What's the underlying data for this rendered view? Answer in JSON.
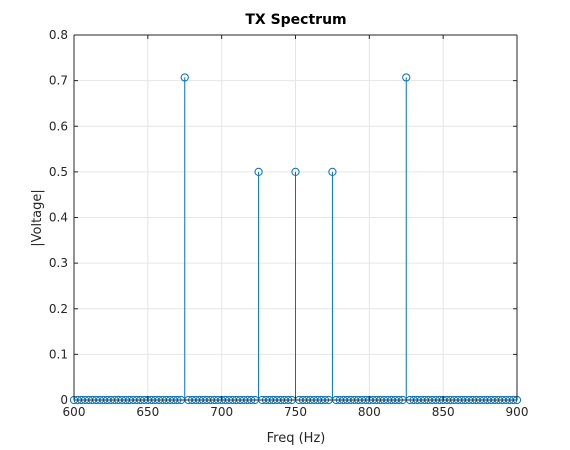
{
  "chart_data": {
    "type": "stem",
    "title": "TX Spectrum",
    "xlabel": "Freq (Hz)",
    "ylabel": "|Voltage|",
    "xlim": [
      600,
      900
    ],
    "ylim": [
      0,
      0.8
    ],
    "grid": true,
    "x_ticks": [
      "600",
      "650",
      "700",
      "750",
      "800",
      "850",
      "900"
    ],
    "y_ticks": [
      "0",
      "0.1",
      "0.2",
      "0.3",
      "0.4",
      "0.5",
      "0.6",
      "0.7",
      "0.8"
    ],
    "series": [
      {
        "freq_start": 600,
        "freq_step": 2.5,
        "point_count": 121,
        "baseline_value": 0,
        "peaks": [
          {
            "x": 675,
            "y": 0.707
          },
          {
            "x": 725,
            "y": 0.5
          },
          {
            "x": 750,
            "y": 0.5
          },
          {
            "x": 775,
            "y": 0.5
          },
          {
            "x": 825,
            "y": 0.707
          }
        ]
      }
    ],
    "colors": {
      "stem": "#0072BD",
      "grid": "#e6e6e6",
      "axis": "#262626"
    }
  }
}
